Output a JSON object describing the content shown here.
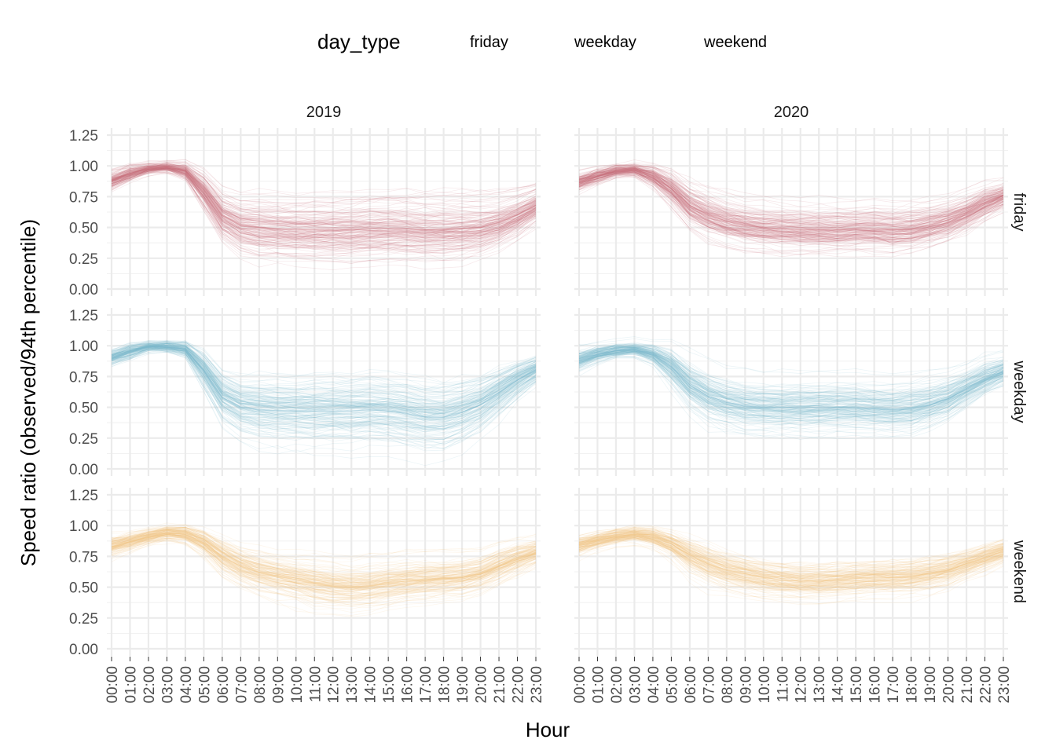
{
  "chart_data": {
    "type": "line",
    "legend": {
      "title": "day_type",
      "position": "top",
      "entries": [
        "friday",
        "weekday",
        "weekend"
      ]
    },
    "xlabel": "Hour",
    "ylabel": "Speed ratio (observed/94th percentile)",
    "ylim": [
      0,
      1.25
    ],
    "yticks": [
      "0.00",
      "0.25",
      "0.50",
      "0.75",
      "1.00",
      "1.25"
    ],
    "yticks_values": [
      0,
      0.25,
      0.5,
      0.75,
      1.0,
      1.25
    ],
    "categories": [
      "00:00",
      "01:00",
      "02:00",
      "03:00",
      "04:00",
      "05:00",
      "06:00",
      "07:00",
      "08:00",
      "09:00",
      "10:00",
      "11:00",
      "12:00",
      "13:00",
      "14:00",
      "15:00",
      "16:00",
      "17:00",
      "18:00",
      "19:00",
      "20:00",
      "21:00",
      "22:00",
      "23:00"
    ],
    "columns": [
      "2019",
      "2020"
    ],
    "rows": [
      "friday",
      "weekday",
      "weekend"
    ],
    "colors": {
      "friday": "#c9727c",
      "weekday": "#7fb8cf",
      "weekend": "#f2c889"
    },
    "grid": true,
    "panels": [
      {
        "year": "2019",
        "day_type": "friday",
        "median": [
          0.88,
          0.94,
          0.98,
          0.99,
          0.96,
          0.8,
          0.6,
          0.52,
          0.5,
          0.49,
          0.48,
          0.48,
          0.48,
          0.48,
          0.49,
          0.49,
          0.49,
          0.48,
          0.48,
          0.49,
          0.5,
          0.54,
          0.6,
          0.68
        ],
        "spread": [
          0.06,
          0.05,
          0.03,
          0.03,
          0.05,
          0.12,
          0.16,
          0.18,
          0.2,
          0.2,
          0.2,
          0.21,
          0.21,
          0.21,
          0.21,
          0.21,
          0.21,
          0.21,
          0.21,
          0.2,
          0.19,
          0.17,
          0.15,
          0.12
        ]
      },
      {
        "year": "2020",
        "day_type": "friday",
        "median": [
          0.87,
          0.92,
          0.96,
          0.97,
          0.92,
          0.82,
          0.68,
          0.6,
          0.55,
          0.52,
          0.5,
          0.49,
          0.48,
          0.48,
          0.48,
          0.49,
          0.49,
          0.48,
          0.49,
          0.52,
          0.56,
          0.62,
          0.7,
          0.76
        ],
        "spread": [
          0.06,
          0.05,
          0.04,
          0.04,
          0.07,
          0.11,
          0.14,
          0.15,
          0.15,
          0.15,
          0.15,
          0.15,
          0.15,
          0.15,
          0.15,
          0.15,
          0.15,
          0.15,
          0.15,
          0.14,
          0.13,
          0.12,
          0.11,
          0.09
        ]
      },
      {
        "year": "2019",
        "day_type": "weekday",
        "median": [
          0.9,
          0.95,
          0.99,
          0.99,
          0.97,
          0.8,
          0.58,
          0.5,
          0.48,
          0.47,
          0.47,
          0.47,
          0.47,
          0.47,
          0.48,
          0.47,
          0.45,
          0.42,
          0.42,
          0.46,
          0.52,
          0.62,
          0.72,
          0.8
        ],
        "spread": [
          0.05,
          0.05,
          0.03,
          0.03,
          0.05,
          0.12,
          0.16,
          0.18,
          0.2,
          0.2,
          0.2,
          0.21,
          0.21,
          0.21,
          0.21,
          0.21,
          0.21,
          0.21,
          0.21,
          0.2,
          0.18,
          0.15,
          0.12,
          0.09
        ]
      },
      {
        "year": "2020",
        "day_type": "weekday",
        "median": [
          0.88,
          0.93,
          0.96,
          0.97,
          0.93,
          0.83,
          0.68,
          0.59,
          0.54,
          0.51,
          0.5,
          0.5,
          0.5,
          0.5,
          0.5,
          0.5,
          0.49,
          0.48,
          0.49,
          0.52,
          0.57,
          0.65,
          0.73,
          0.79
        ],
        "spread": [
          0.06,
          0.05,
          0.04,
          0.04,
          0.06,
          0.11,
          0.14,
          0.15,
          0.15,
          0.15,
          0.15,
          0.15,
          0.15,
          0.15,
          0.15,
          0.15,
          0.15,
          0.15,
          0.15,
          0.14,
          0.13,
          0.11,
          0.1,
          0.08
        ]
      },
      {
        "year": "2019",
        "day_type": "weekend",
        "median": [
          0.83,
          0.87,
          0.91,
          0.94,
          0.93,
          0.86,
          0.75,
          0.67,
          0.62,
          0.59,
          0.56,
          0.53,
          0.51,
          0.5,
          0.51,
          0.53,
          0.55,
          0.56,
          0.57,
          0.58,
          0.61,
          0.67,
          0.73,
          0.78
        ],
        "spread": [
          0.07,
          0.06,
          0.05,
          0.05,
          0.06,
          0.09,
          0.12,
          0.13,
          0.14,
          0.14,
          0.15,
          0.16,
          0.16,
          0.16,
          0.16,
          0.15,
          0.15,
          0.15,
          0.14,
          0.14,
          0.13,
          0.12,
          0.11,
          0.09
        ]
      },
      {
        "year": "2020",
        "day_type": "weekend",
        "median": [
          0.84,
          0.88,
          0.91,
          0.93,
          0.91,
          0.85,
          0.76,
          0.69,
          0.64,
          0.61,
          0.58,
          0.56,
          0.55,
          0.55,
          0.56,
          0.57,
          0.58,
          0.58,
          0.59,
          0.61,
          0.64,
          0.69,
          0.74,
          0.79
        ],
        "spread": [
          0.06,
          0.05,
          0.05,
          0.05,
          0.06,
          0.08,
          0.11,
          0.12,
          0.12,
          0.12,
          0.12,
          0.12,
          0.12,
          0.12,
          0.12,
          0.12,
          0.12,
          0.12,
          0.12,
          0.12,
          0.11,
          0.1,
          0.09,
          0.08
        ]
      }
    ]
  }
}
